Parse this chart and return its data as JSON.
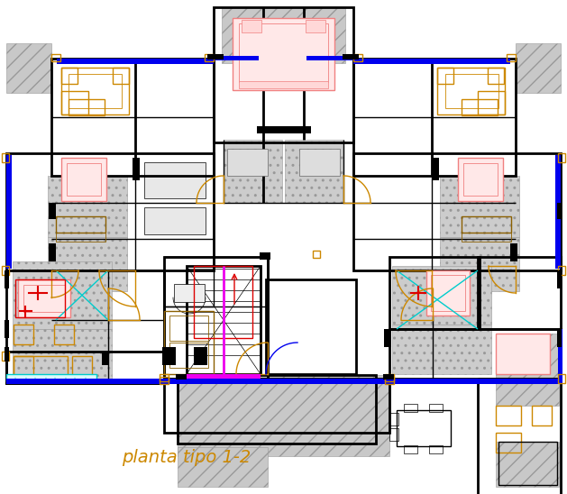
{
  "title": "planta tipo 1-2",
  "title_color": "#CC8800",
  "title_fontsize": 14,
  "bg_color": "#FFFFFF",
  "wall_color": "#000000",
  "blue_color": "#0000EE",
  "orange_color": "#CC8800",
  "pink_color": "#F08080",
  "cyan_color": "#00CCCC",
  "gray_color": "#AAAAAA",
  "magenta_color": "#EE00EE",
  "red_color": "#DD0000",
  "brown_color": "#8B6000",
  "hatch_gray": "#C8C8C8",
  "hatch_gray2": "#D8D8D8"
}
